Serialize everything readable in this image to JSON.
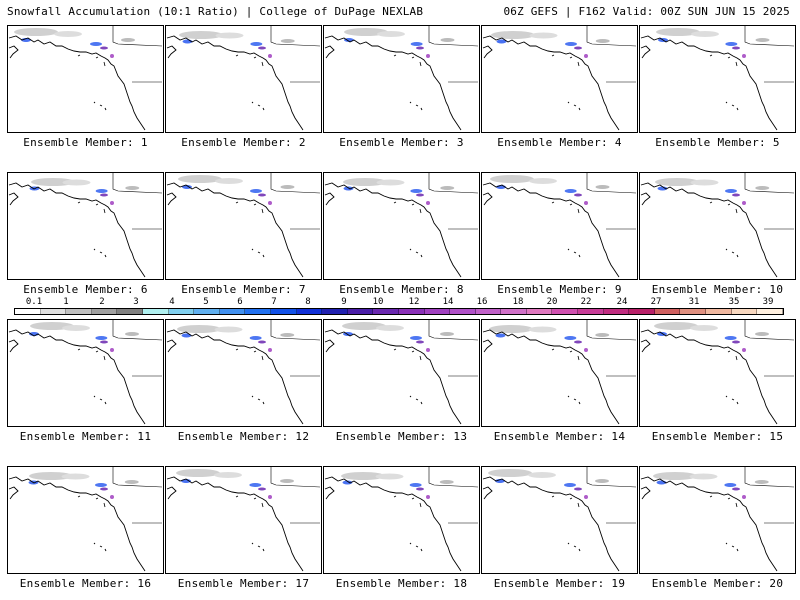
{
  "header": {
    "title_left": "Snowfall Accumulation (10:1 Ratio) | College of DuPage NEXLAB",
    "title_right": "06Z GEFS | F162 Valid: 00Z SUN JUN 15 2025"
  },
  "panels": [
    {
      "label": "Ensemble Member: 1"
    },
    {
      "label": "Ensemble Member: 2"
    },
    {
      "label": "Ensemble Member: 3"
    },
    {
      "label": "Ensemble Member: 4"
    },
    {
      "label": "Ensemble Member: 5"
    },
    {
      "label": "Ensemble Member: 6"
    },
    {
      "label": "Ensemble Member: 7"
    },
    {
      "label": "Ensemble Member: 8"
    },
    {
      "label": "Ensemble Member: 9"
    },
    {
      "label": "Ensemble Member: 10"
    },
    {
      "label": "Ensemble Member: 11"
    },
    {
      "label": "Ensemble Member: 12"
    },
    {
      "label": "Ensemble Member: 13"
    },
    {
      "label": "Ensemble Member: 14"
    },
    {
      "label": "Ensemble Member: 15"
    },
    {
      "label": "Ensemble Member: 16"
    },
    {
      "label": "Ensemble Member: 17"
    },
    {
      "label": "Ensemble Member: 18"
    },
    {
      "label": "Ensemble Member: 19"
    },
    {
      "label": "Ensemble Member: 20"
    }
  ],
  "legend": {
    "labels": [
      "0.1",
      "1",
      "2",
      "3",
      "4",
      "5",
      "6",
      "7",
      "8",
      "9",
      "10",
      "12",
      "14",
      "16",
      "18",
      "20",
      "22",
      "24",
      "27",
      "31",
      "35",
      "39"
    ],
    "colors": [
      "#ffffff",
      "#e0e0e0",
      "#c0c0c0",
      "#a0a0a0",
      "#808080",
      "#b0f0f0",
      "#80d0f0",
      "#60b0f0",
      "#4090f0",
      "#2070f0",
      "#1050e8",
      "#1030d8",
      "#2020b0",
      "#4a1ea8",
      "#6a28b0",
      "#8a30b8",
      "#a040c0",
      "#b050c8",
      "#c060c8",
      "#d070c8",
      "#e078c0",
      "#d050b0",
      "#c83c98",
      "#c02c80",
      "#b82068",
      "#d06060",
      "#e09080",
      "#f0b8a0",
      "#f8d8c0",
      "#fff0e0"
    ]
  }
}
